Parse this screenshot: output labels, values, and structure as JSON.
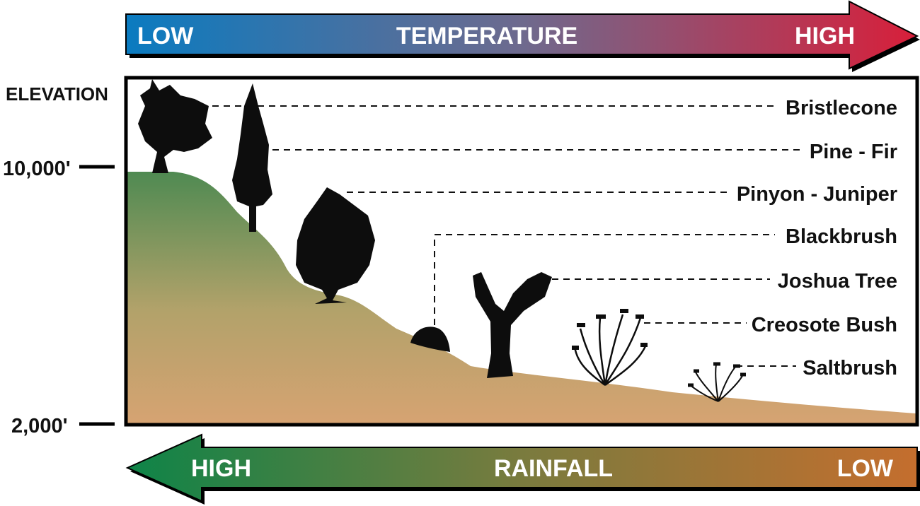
{
  "temperature": {
    "label": "TEMPERATURE",
    "low": "LOW",
    "high": "HIGH",
    "colors": {
      "low": "#0a7bc0",
      "mid": "#6e6a8e",
      "high": "#d81f3a"
    }
  },
  "rainfall": {
    "label": "RAINFALL",
    "high": "HIGH",
    "low": "LOW",
    "colors": {
      "high": "#0e8448",
      "mid": "#7a7b3e",
      "low": "#c46e2e"
    }
  },
  "elevation": {
    "label": "ELEVATION",
    "top": "10,000'",
    "bottom": "2,000'"
  },
  "ground_colors": {
    "top": "#4f8a52",
    "bottom": "#d6a372"
  },
  "zones": [
    {
      "label": "Bristlecone",
      "icon": "bristlecone-tree-icon"
    },
    {
      "label": "Pine - Fir",
      "icon": "fir-tree-icon"
    },
    {
      "label": "Pinyon - Juniper",
      "icon": "juniper-tree-icon"
    },
    {
      "label": "Blackbrush",
      "icon": "blackbrush-icon"
    },
    {
      "label": "Joshua Tree",
      "icon": "joshua-tree-icon"
    },
    {
      "label": "Creosote Bush",
      "icon": "creosote-bush-icon"
    },
    {
      "label": "Saltbrush",
      "icon": "saltbrush-icon"
    }
  ]
}
